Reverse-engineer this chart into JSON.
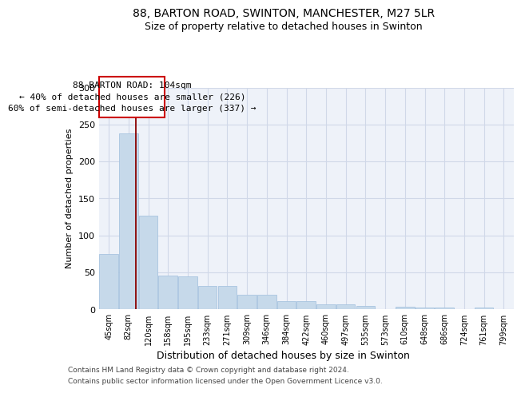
{
  "title_line1": "88, BARTON ROAD, SWINTON, MANCHESTER, M27 5LR",
  "title_line2": "Size of property relative to detached houses in Swinton",
  "xlabel": "Distribution of detached houses by size in Swinton",
  "ylabel": "Number of detached properties",
  "bar_labels": [
    "45sqm",
    "82sqm",
    "120sqm",
    "158sqm",
    "195sqm",
    "233sqm",
    "271sqm",
    "309sqm",
    "346sqm",
    "384sqm",
    "422sqm",
    "460sqm",
    "497sqm",
    "535sqm",
    "573sqm",
    "610sqm",
    "648sqm",
    "686sqm",
    "724sqm",
    "761sqm",
    "799sqm"
  ],
  "bar_values": [
    75,
    238,
    127,
    45,
    44,
    31,
    31,
    19,
    19,
    11,
    11,
    7,
    7,
    4,
    0,
    3,
    2,
    2,
    0,
    2,
    0
  ],
  "bar_color": "#c6d9ea",
  "bar_edgecolor": "#a8c4e0",
  "grid_color": "#d0d8e8",
  "background_color": "#eef2f9",
  "red_line_x": 1.38,
  "annotation_text_line1": "88 BARTON ROAD: 104sqm",
  "annotation_text_line2": "← 40% of detached houses are smaller (226)",
  "annotation_text_line3": "60% of semi-detached houses are larger (337) →",
  "footer_line1": "Contains HM Land Registry data © Crown copyright and database right 2024.",
  "footer_line2": "Contains public sector information licensed under the Open Government Licence v3.0.",
  "ylim": [
    0,
    300
  ],
  "yticks": [
    0,
    50,
    100,
    150,
    200,
    250,
    300
  ]
}
